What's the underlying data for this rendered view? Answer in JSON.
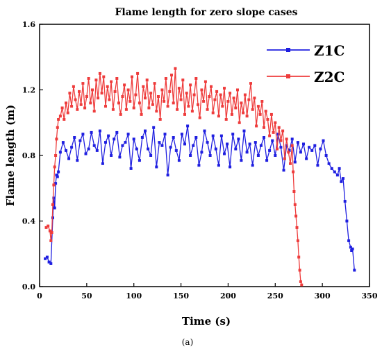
{
  "chart_data": {
    "type": "line",
    "title": "Flame length for zero slope cases",
    "xlabel": "Time (s)",
    "ylabel": "Flame length (m)",
    "xlim": [
      0,
      350
    ],
    "ylim": [
      0.0,
      1.6
    ],
    "xticks": [
      "0",
      "50",
      "100",
      "150",
      "200",
      "250",
      "300",
      "350"
    ],
    "yticks": [
      "0.0",
      "0.4",
      "0.8",
      "1.2",
      "1.6"
    ],
    "grid": false,
    "legend_position": "top-right",
    "caption": "(a)",
    "series": [
      {
        "name": "Z1C",
        "color": "#1f1fe0",
        "marker": "square",
        "points": [
          [
            6,
            0.17
          ],
          [
            8,
            0.18
          ],
          [
            10,
            0.15
          ],
          [
            12,
            0.14
          ],
          [
            14,
            0.42
          ],
          [
            15,
            0.54
          ],
          [
            16,
            0.48
          ],
          [
            17,
            0.63
          ],
          [
            18,
            0.68
          ],
          [
            19,
            0.67
          ],
          [
            20,
            0.7
          ],
          [
            22,
            0.82
          ],
          [
            25,
            0.88
          ],
          [
            28,
            0.83
          ],
          [
            31,
            0.78
          ],
          [
            34,
            0.85
          ],
          [
            37,
            0.91
          ],
          [
            40,
            0.77
          ],
          [
            43,
            0.89
          ],
          [
            46,
            0.93
          ],
          [
            49,
            0.81
          ],
          [
            52,
            0.84
          ],
          [
            55,
            0.94
          ],
          [
            58,
            0.86
          ],
          [
            61,
            0.83
          ],
          [
            64,
            0.95
          ],
          [
            67,
            0.75
          ],
          [
            70,
            0.88
          ],
          [
            73,
            0.92
          ],
          [
            76,
            0.8
          ],
          [
            79,
            0.9
          ],
          [
            82,
            0.94
          ],
          [
            85,
            0.79
          ],
          [
            88,
            0.86
          ],
          [
            91,
            0.88
          ],
          [
            94,
            0.93
          ],
          [
            97,
            0.72
          ],
          [
            100,
            0.9
          ],
          [
            103,
            0.84
          ],
          [
            106,
            0.77
          ],
          [
            109,
            0.91
          ],
          [
            112,
            0.95
          ],
          [
            115,
            0.84
          ],
          [
            118,
            0.8
          ],
          [
            121,
            0.97
          ],
          [
            124,
            0.73
          ],
          [
            127,
            0.88
          ],
          [
            130,
            0.86
          ],
          [
            133,
            0.93
          ],
          [
            136,
            0.68
          ],
          [
            139,
            0.85
          ],
          [
            142,
            0.91
          ],
          [
            145,
            0.83
          ],
          [
            148,
            0.77
          ],
          [
            151,
            0.93
          ],
          [
            154,
            0.87
          ],
          [
            157,
            0.98
          ],
          [
            160,
            0.8
          ],
          [
            163,
            0.86
          ],
          [
            166,
            0.91
          ],
          [
            169,
            0.74
          ],
          [
            172,
            0.82
          ],
          [
            175,
            0.95
          ],
          [
            178,
            0.88
          ],
          [
            181,
            0.8
          ],
          [
            184,
            0.92
          ],
          [
            187,
            0.84
          ],
          [
            190,
            0.74
          ],
          [
            193,
            0.92
          ],
          [
            196,
            0.81
          ],
          [
            199,
            0.87
          ],
          [
            202,
            0.73
          ],
          [
            205,
            0.93
          ],
          [
            208,
            0.84
          ],
          [
            211,
            0.9
          ],
          [
            214,
            0.77
          ],
          [
            217,
            0.95
          ],
          [
            220,
            0.82
          ],
          [
            223,
            0.87
          ],
          [
            226,
            0.74
          ],
          [
            229,
            0.88
          ],
          [
            232,
            0.8
          ],
          [
            235,
            0.86
          ],
          [
            238,
            0.91
          ],
          [
            241,
            0.77
          ],
          [
            244,
            0.83
          ],
          [
            247,
            0.89
          ],
          [
            250,
            0.8
          ],
          [
            253,
            0.93
          ],
          [
            256,
            0.85
          ],
          [
            259,
            0.71
          ],
          [
            262,
            0.86
          ],
          [
            265,
            0.83
          ],
          [
            268,
            0.9
          ],
          [
            271,
            0.76
          ],
          [
            274,
            0.88
          ],
          [
            277,
            0.82
          ],
          [
            280,
            0.87
          ],
          [
            283,
            0.78
          ],
          [
            286,
            0.85
          ],
          [
            289,
            0.83
          ],
          [
            292,
            0.86
          ],
          [
            295,
            0.74
          ],
          [
            298,
            0.84
          ],
          [
            301,
            0.89
          ],
          [
            304,
            0.8
          ],
          [
            307,
            0.75
          ],
          [
            310,
            0.72
          ],
          [
            313,
            0.7
          ],
          [
            316,
            0.68
          ],
          [
            318,
            0.72
          ],
          [
            320,
            0.64
          ],
          [
            322,
            0.66
          ],
          [
            324,
            0.52
          ],
          [
            326,
            0.4
          ],
          [
            328,
            0.28
          ],
          [
            330,
            0.24
          ],
          [
            331,
            0.22
          ],
          [
            332,
            0.23
          ],
          [
            334,
            0.1
          ]
        ]
      },
      {
        "name": "Z2C",
        "color": "#ee3c3c",
        "marker": "square",
        "points": [
          [
            7,
            0.36
          ],
          [
            9,
            0.37
          ],
          [
            11,
            0.34
          ],
          [
            12,
            0.28
          ],
          [
            13,
            0.33
          ],
          [
            14,
            0.5
          ],
          [
            15,
            0.62
          ],
          [
            16,
            0.73
          ],
          [
            17,
            0.8
          ],
          [
            18,
            0.9
          ],
          [
            19,
            0.97
          ],
          [
            20,
            1.02
          ],
          [
            22,
            1.04
          ],
          [
            24,
            1.09
          ],
          [
            26,
            1.02
          ],
          [
            28,
            1.12
          ],
          [
            30,
            1.06
          ],
          [
            32,
            1.18
          ],
          [
            34,
            1.1
          ],
          [
            36,
            1.22
          ],
          [
            38,
            1.14
          ],
          [
            40,
            1.08
          ],
          [
            42,
            1.19
          ],
          [
            44,
            1.11
          ],
          [
            46,
            1.24
          ],
          [
            48,
            1.09
          ],
          [
            50,
            1.16
          ],
          [
            52,
            1.27
          ],
          [
            54,
            1.12
          ],
          [
            56,
            1.2
          ],
          [
            58,
            1.07
          ],
          [
            60,
            1.26
          ],
          [
            62,
            1.15
          ],
          [
            64,
            1.3
          ],
          [
            66,
            1.18
          ],
          [
            68,
            1.28
          ],
          [
            70,
            1.1
          ],
          [
            72,
            1.22
          ],
          [
            74,
            1.14
          ],
          [
            76,
            1.25
          ],
          [
            78,
            1.08
          ],
          [
            80,
            1.19
          ],
          [
            82,
            1.27
          ],
          [
            84,
            1.12
          ],
          [
            86,
            1.05
          ],
          [
            88,
            1.16
          ],
          [
            90,
            1.23
          ],
          [
            92,
            1.08
          ],
          [
            94,
            1.2
          ],
          [
            96,
            1.13
          ],
          [
            98,
            1.28
          ],
          [
            100,
            1.09
          ],
          [
            102,
            1.17
          ],
          [
            104,
            1.3
          ],
          [
            106,
            1.12
          ],
          [
            108,
            1.05
          ],
          [
            110,
            1.22
          ],
          [
            112,
            1.15
          ],
          [
            114,
            1.26
          ],
          [
            116,
            1.09
          ],
          [
            118,
            1.18
          ],
          [
            120,
            1.11
          ],
          [
            122,
            1.24
          ],
          [
            124,
            1.07
          ],
          [
            126,
            1.16
          ],
          [
            128,
            1.02
          ],
          [
            130,
            1.2
          ],
          [
            132,
            1.13
          ],
          [
            134,
            1.27
          ],
          [
            136,
            1.1
          ],
          [
            138,
            1.19
          ],
          [
            140,
            1.29
          ],
          [
            142,
            1.12
          ],
          [
            144,
            1.33
          ],
          [
            146,
            1.08
          ],
          [
            148,
            1.21
          ],
          [
            150,
            1.14
          ],
          [
            152,
            1.26
          ],
          [
            154,
            1.05
          ],
          [
            156,
            1.18
          ],
          [
            158,
            1.1
          ],
          [
            160,
            1.23
          ],
          [
            162,
            1.07
          ],
          [
            164,
            1.17
          ],
          [
            166,
            1.27
          ],
          [
            168,
            1.11
          ],
          [
            170,
            1.03
          ],
          [
            172,
            1.2
          ],
          [
            174,
            1.13
          ],
          [
            176,
            1.25
          ],
          [
            178,
            1.08
          ],
          [
            180,
            1.16
          ],
          [
            182,
            1.22
          ],
          [
            184,
            1.06
          ],
          [
            186,
            1.14
          ],
          [
            188,
            1.19
          ],
          [
            190,
            1.04
          ],
          [
            192,
            1.17
          ],
          [
            194,
            1.1
          ],
          [
            196,
            1.21
          ],
          [
            198,
            1.02
          ],
          [
            200,
            1.13
          ],
          [
            202,
            1.18
          ],
          [
            204,
            1.05
          ],
          [
            206,
            1.15
          ],
          [
            208,
            1.09
          ],
          [
            210,
            1.2
          ],
          [
            212,
            1.0
          ],
          [
            214,
            1.12
          ],
          [
            216,
            1.06
          ],
          [
            218,
            1.17
          ],
          [
            220,
            1.04
          ],
          [
            222,
            1.14
          ],
          [
            224,
            1.24
          ],
          [
            226,
            1.08
          ],
          [
            228,
            1.15
          ],
          [
            230,
            0.98
          ],
          [
            232,
            1.1
          ],
          [
            234,
            1.05
          ],
          [
            236,
            1.13
          ],
          [
            238,
            0.97
          ],
          [
            240,
            1.07
          ],
          [
            242,
            1.02
          ],
          [
            244,
            0.92
          ],
          [
            246,
            1.05
          ],
          [
            248,
            0.94
          ],
          [
            250,
            1.0
          ],
          [
            252,
            0.84
          ],
          [
            254,
            0.97
          ],
          [
            256,
            0.89
          ],
          [
            258,
            0.95
          ],
          [
            260,
            0.78
          ],
          [
            262,
            0.9
          ],
          [
            264,
            0.82
          ],
          [
            266,
            0.75
          ],
          [
            268,
            0.86
          ],
          [
            269,
            0.7
          ],
          [
            270,
            0.58
          ],
          [
            271,
            0.5
          ],
          [
            272,
            0.43
          ],
          [
            273,
            0.36
          ],
          [
            274,
            0.28
          ],
          [
            275,
            0.18
          ],
          [
            276,
            0.1
          ],
          [
            277,
            0.03
          ],
          [
            278,
            0.01
          ]
        ]
      }
    ]
  }
}
